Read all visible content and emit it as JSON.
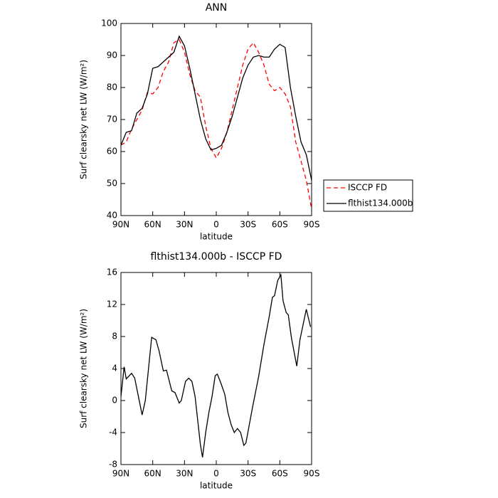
{
  "chart_data": [
    {
      "type": "line",
      "title": "ANN",
      "xlabel": "latitude",
      "ylabel": "Surf clearsky net LW (W/m²)",
      "x": [
        90,
        85,
        80,
        75,
        70,
        65,
        60,
        55,
        50,
        45,
        40,
        35,
        30,
        25,
        20,
        15,
        10,
        5,
        0,
        -5,
        -10,
        -15,
        -20,
        -25,
        -30,
        -35,
        -40,
        -45,
        -50,
        -55,
        -60,
        -65,
        -70,
        -75,
        -80,
        -85,
        -90
      ],
      "series": [
        {
          "name": "ISCCP FD",
          "color": "#ff0000",
          "line_style": "dashed",
          "values": [
            62,
            63,
            67,
            70,
            73,
            78.5,
            78,
            80,
            85,
            88,
            94,
            95,
            91,
            84,
            79,
            77,
            68,
            61,
            58,
            61,
            66,
            73,
            80,
            87,
            92,
            94,
            91,
            87,
            81,
            79,
            80,
            78,
            74,
            63,
            57,
            51,
            42
          ]
        },
        {
          "name": "flthist134.000b",
          "color": "#000000",
          "line_style": "solid",
          "values": [
            62,
            66,
            66.5,
            72,
            73.5,
            78,
            86,
            86.5,
            88,
            89.5,
            91,
            96,
            93,
            86,
            78,
            70,
            64,
            60.5,
            61,
            62,
            66,
            71,
            77,
            83,
            87,
            89.5,
            90,
            89.5,
            89.5,
            92,
            93.5,
            92.5,
            80,
            71,
            63,
            59,
            51
          ]
        }
      ],
      "xlim": [
        90,
        -90
      ],
      "xticks": [
        {
          "value": 90,
          "label": "90N"
        },
        {
          "value": 60,
          "label": "60N"
        },
        {
          "value": 30,
          "label": "30N"
        },
        0,
        {
          "value": -30,
          "label": "30S"
        },
        {
          "value": -60,
          "label": "60S"
        },
        {
          "value": -90,
          "label": "90S"
        }
      ],
      "ylim": [
        40,
        100
      ],
      "yticks": [
        40,
        50,
        60,
        70,
        80,
        90,
        100
      ],
      "legend": "outside-right"
    },
    {
      "type": "line",
      "title": "flthist134.000b - ISCCP FD",
      "xlabel": "latitude",
      "ylabel": "Surf clearsky net LW (W/m²)",
      "x": [
        90,
        87,
        85,
        80,
        77,
        70,
        67,
        61,
        57,
        54,
        50,
        47,
        42,
        39,
        35,
        33,
        29,
        26,
        23,
        20,
        15,
        13,
        10,
        7,
        4,
        1,
        -1,
        -4,
        -8,
        -11,
        -14,
        -17,
        -20,
        -23,
        -26,
        -28,
        -34,
        -40,
        -45,
        -50,
        -53,
        -55,
        -58,
        -61,
        -63,
        -66,
        -68,
        -71,
        -76,
        -79,
        -85,
        -89
      ],
      "values": [
        0.5,
        4.2,
        2.7,
        3.4,
        2.8,
        -1.8,
        0,
        7.9,
        7.6,
        6.2,
        3.7,
        3.8,
        1.2,
        1.0,
        -0.3,
        0,
        2.4,
        2.8,
        2.4,
        0.5,
        -5.5,
        -7.1,
        -4,
        -1.5,
        0.5,
        3.1,
        3.3,
        2.3,
        0.8,
        -1.5,
        -3,
        -4,
        -3.5,
        -4,
        -5.6,
        -5.3,
        -1,
        3,
        7,
        10.5,
        12.9,
        13.1,
        15,
        15.7,
        12.5,
        11,
        10.7,
        7.8,
        4.3,
        7.6,
        11.4,
        9.2
      ],
      "color": "#000000",
      "line_style": "solid",
      "xlim": [
        90,
        -90
      ],
      "xticks": [
        {
          "value": 90,
          "label": "90N"
        },
        {
          "value": 60,
          "label": "60N"
        },
        {
          "value": 30,
          "label": "30N"
        },
        0,
        {
          "value": -30,
          "label": "30S"
        },
        {
          "value": -60,
          "label": "60S"
        },
        {
          "value": -90,
          "label": "90S"
        }
      ],
      "ylim": [
        -8,
        16
      ],
      "yticks": [
        -8,
        -4,
        0,
        4,
        8,
        12,
        16
      ]
    }
  ]
}
